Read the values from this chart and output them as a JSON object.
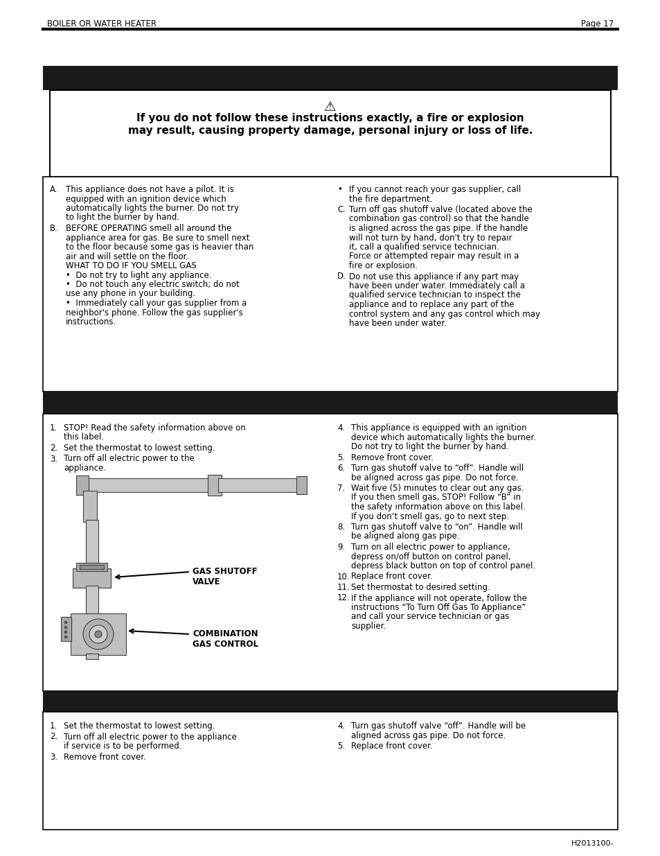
{
  "page_header_left": "BOILER OR WATER HEATER",
  "page_header_right": "Page 17",
  "warning_line1": "If you do not follow these instructions exactly, a fire or explosion",
  "warning_line2": "may result, causing property damage, personal injury or loss of life.",
  "sec1_left": [
    [
      "A.",
      "This appliance does not have a pilot. It is equipped with an ignition device which automatically lights the burner. Do not try to light the burner by hand."
    ],
    [
      "B.",
      "BEFORE OPERATING smell all around the appliance area for gas. Be sure to smell next to the floor because some gas is heavier than air and will settle on the floor.\nWHAT TO DO IF YOU SMELL GAS\n•  Do not try to light any appliance.\n•  Do not touch any electric switch; do not use any phone in your building.\n•  Immediately call your gas supplier from a neighbor's phone. Follow the gas supplier's instructions."
    ]
  ],
  "sec1_right": [
    [
      "•",
      "If you cannot reach your gas supplier, call the fire department."
    ],
    [
      "C.",
      "Turn off gas shutoff valve (located above the combination gas control) so that the handle is aligned across the gas pipe. If the handle will not turn by hand, don't try to repair it, call a qualified service technician. Force or attempted repair may result in a fire or explosion."
    ],
    [
      "D.",
      "Do not use this appliance if any part may have been under water. Immediately call a qualified service technician to inspect the appliance and to replace any part of the control system and any gas control which may have been under water."
    ]
  ],
  "sec2_left": [
    [
      "1.",
      "STOP! Read the safety information above on this label."
    ],
    [
      "2.",
      "Set the thermostat to lowest setting."
    ],
    [
      "3.",
      "Turn off all electric power to the appliance."
    ]
  ],
  "sec2_right": [
    [
      "4.",
      "This appliance is equipped with an ignition device which automatically lights the burner. Do not try to light the burner by hand."
    ],
    [
      "5.",
      "Remove front cover."
    ],
    [
      "6.",
      "Turn gas shutoff valve to “off”. Handle will be aligned across gas pipe. Do not force."
    ],
    [
      "7.",
      "Wait five (5) minutes to clear out any gas. If you then smell gas, STOP! Follow “B” in the safety information above on this label. If you don’t smell gas, go to next step."
    ],
    [
      "8.",
      "Turn gas shutoff valve to “on”. Handle will be aligned along gas pipe."
    ],
    [
      "9.",
      "Turn on all electric power to appliance, depress on/off button on control panel, depress black button on top of control panel."
    ],
    [
      "10.",
      "Replace front cover."
    ],
    [
      "11.",
      "Set thermostat to desired setting."
    ],
    [
      "12.",
      "If the appliance will not operate, follow the instructions “To Turn Off Gas To Appliance” and call your service technician or gas supplier."
    ]
  ],
  "sec3_left": [
    [
      "1.",
      "Set the thermostat to lowest setting."
    ],
    [
      "2.",
      "Turn off all electric power to the appliance if service is to be performed."
    ],
    [
      "3.",
      "Remove front cover."
    ]
  ],
  "sec3_right": [
    [
      "4.",
      "Turn gas shutoff valve “off”. Handle will be aligned across gas pipe. Do not force."
    ],
    [
      "5.",
      "Replace front cover."
    ]
  ],
  "gas_shutoff_label": "GAS SHUTOFF\nVALVE",
  "combination_label": "COMBINATION\nGAS CONTROL",
  "footer_text": "H2013100-",
  "bg_color": "#ffffff",
  "black_bar_color": "#1a1a1a",
  "text_color": "#000000"
}
